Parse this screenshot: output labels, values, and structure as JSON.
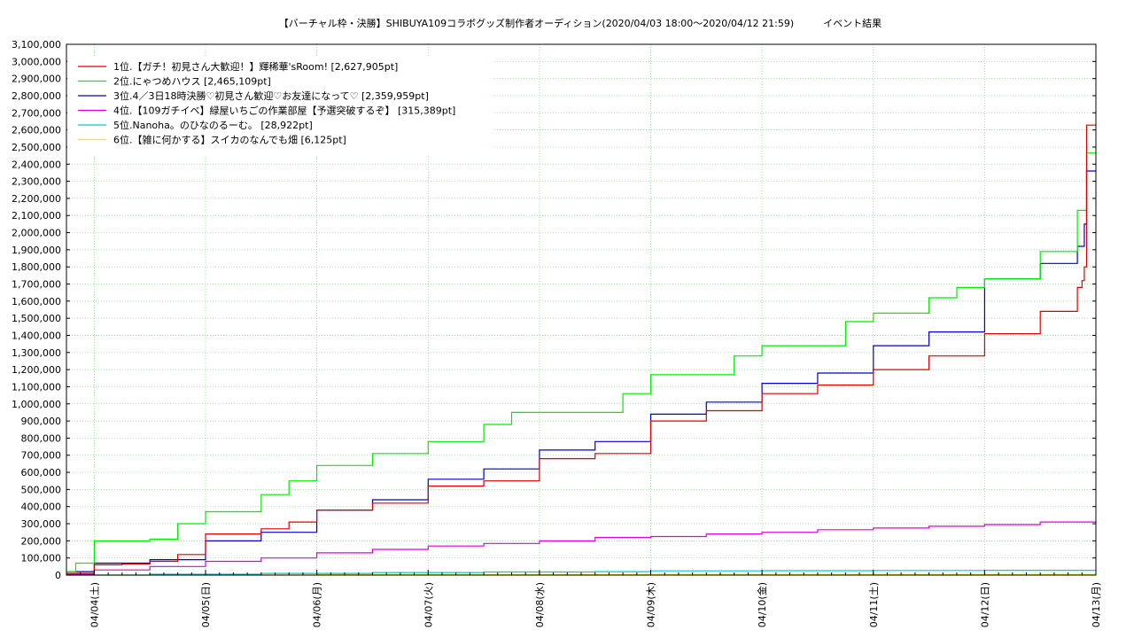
{
  "chart_data": {
    "type": "line",
    "title": "【バーチャル枠・決勝】SHIBUYA109コラボグッズ制作者オーディション(2020/04/03 18:00〜2020/04/12 21:59)　　　イベント結果",
    "xlabel": "",
    "ylabel": "",
    "grid": true,
    "legend_position": "top-left",
    "x_start": "2020-04-03 18:00",
    "x_end": "2020-04-13 00:00",
    "x_tick_labels": [
      "04/04(土)",
      "04/05(日)",
      "04/06(月)",
      "04/07(火)",
      "04/08(水)",
      "04/09(木)",
      "04/10(金)",
      "04/11(土)",
      "04/12(日)",
      "04/13(月)"
    ],
    "x_tick_dates": [
      "2020-04-04",
      "2020-04-05",
      "2020-04-06",
      "2020-04-07",
      "2020-04-08",
      "2020-04-09",
      "2020-04-10",
      "2020-04-11",
      "2020-04-12",
      "2020-04-13"
    ],
    "ylim": [
      0,
      3100000
    ],
    "y_tick_step": 100000,
    "y_tick_labels": [
      "0",
      "100,000",
      "200,000",
      "300,000",
      "400,000",
      "500,000",
      "600,000",
      "700,000",
      "800,000",
      "900,000",
      "1,000,000",
      "1,100,000",
      "1,200,000",
      "1,300,000",
      "1,400,000",
      "1,500,000",
      "1,600,000",
      "1,700,000",
      "1,800,000",
      "1,900,000",
      "2,000,000",
      "2,100,000",
      "2,200,000",
      "2,300,000",
      "2,400,000",
      "2,500,000",
      "2,600,000",
      "2,700,000",
      "2,800,000",
      "2,900,000",
      "3,000,000",
      "3,100,000"
    ],
    "series": [
      {
        "name": "1位.【ガチ！初見さん大歓迎！】輝稀華'sRoom! [2,627,905pt]",
        "color": "#dd0000",
        "x": [
          "2020-04-03 18:00",
          "2020-04-04 00:00",
          "2020-04-04 06:00",
          "2020-04-04 12:00",
          "2020-04-04 18:00",
          "2020-04-05 00:00",
          "2020-04-05 06:00",
          "2020-04-05 12:00",
          "2020-04-05 18:00",
          "2020-04-06 00:00",
          "2020-04-06 12:00",
          "2020-04-07 00:00",
          "2020-04-07 12:00",
          "2020-04-08 00:00",
          "2020-04-08 12:00",
          "2020-04-09 00:00",
          "2020-04-09 12:00",
          "2020-04-10 00:00",
          "2020-04-10 12:00",
          "2020-04-11 00:00",
          "2020-04-11 12:00",
          "2020-04-12 00:00",
          "2020-04-12 12:00",
          "2020-04-12 20:00",
          "2020-04-12 21:00",
          "2020-04-12 21:30",
          "2020-04-12 22:00",
          "2020-04-13 00:00"
        ],
        "values": [
          10000,
          60000,
          65000,
          80000,
          120000,
          240000,
          240000,
          270000,
          310000,
          380000,
          420000,
          520000,
          550000,
          680000,
          710000,
          900000,
          960000,
          1060000,
          1110000,
          1200000,
          1280000,
          1410000,
          1540000,
          1680000,
          1720000,
          1800000,
          2627905,
          2627905
        ]
      },
      {
        "name": "2位.にゃつめハウス [2,465,109pt]",
        "color": "#00ee00",
        "x": [
          "2020-04-03 18:00",
          "2020-04-03 20:00",
          "2020-04-04 00:00",
          "2020-04-04 12:00",
          "2020-04-04 18:00",
          "2020-04-05 00:00",
          "2020-04-05 12:00",
          "2020-04-05 18:00",
          "2020-04-06 00:00",
          "2020-04-06 12:00",
          "2020-04-06 18:00",
          "2020-04-07 00:00",
          "2020-04-07 12:00",
          "2020-04-07 18:00",
          "2020-04-08 00:00",
          "2020-04-08 18:00",
          "2020-04-09 00:00",
          "2020-04-09 18:00",
          "2020-04-10 00:00",
          "2020-04-10 18:00",
          "2020-04-11 00:00",
          "2020-04-11 12:00",
          "2020-04-11 18:00",
          "2020-04-12 00:00",
          "2020-04-12 12:00",
          "2020-04-12 20:00",
          "2020-04-12 22:00",
          "2020-04-13 00:00"
        ],
        "values": [
          20000,
          70000,
          200000,
          210000,
          300000,
          370000,
          470000,
          550000,
          640000,
          710000,
          710000,
          780000,
          880000,
          950000,
          950000,
          1060000,
          1170000,
          1280000,
          1340000,
          1480000,
          1530000,
          1620000,
          1680000,
          1730000,
          1890000,
          2130000,
          2465109,
          2465109
        ]
      },
      {
        "name": "3位.4／3日18時決勝♡初見さん歓迎♡お友達になって♡ [2,359,959pt]",
        "color": "#0000cc",
        "x": [
          "2020-04-03 18:00",
          "2020-04-04 00:00",
          "2020-04-04 12:00",
          "2020-04-05 00:00",
          "2020-04-05 12:00",
          "2020-04-06 00:00",
          "2020-04-06 12:00",
          "2020-04-07 00:00",
          "2020-04-07 12:00",
          "2020-04-08 00:00",
          "2020-04-08 12:00",
          "2020-04-09 00:00",
          "2020-04-09 12:00",
          "2020-04-10 00:00",
          "2020-04-10 12:00",
          "2020-04-11 00:00",
          "2020-04-11 12:00",
          "2020-04-12 00:00",
          "2020-04-12 12:00",
          "2020-04-12 20:00",
          "2020-04-12 21:30",
          "2020-04-12 22:00",
          "2020-04-13 00:00"
        ],
        "values": [
          20000,
          70000,
          90000,
          200000,
          250000,
          380000,
          440000,
          560000,
          620000,
          730000,
          780000,
          940000,
          1010000,
          1120000,
          1180000,
          1340000,
          1420000,
          1730000,
          1820000,
          1920000,
          2050000,
          2359959,
          2359959
        ]
      },
      {
        "name": "4位.【109ガチイベ】緑屋いちごの作業部屋【予選突破するぞ】 [315,389pt]",
        "color": "#dd00dd",
        "x": [
          "2020-04-03 18:00",
          "2020-04-04 00:00",
          "2020-04-04 12:00",
          "2020-04-05 00:00",
          "2020-04-05 12:00",
          "2020-04-06 00:00",
          "2020-04-06 12:00",
          "2020-04-07 00:00",
          "2020-04-07 12:00",
          "2020-04-08 00:00",
          "2020-04-08 12:00",
          "2020-04-09 00:00",
          "2020-04-09 12:00",
          "2020-04-10 00:00",
          "2020-04-10 12:00",
          "2020-04-11 00:00",
          "2020-04-11 12:00",
          "2020-04-12 00:00",
          "2020-04-12 12:00",
          "2020-04-13 00:00"
        ],
        "values": [
          5000,
          30000,
          50000,
          80000,
          100000,
          130000,
          150000,
          170000,
          185000,
          200000,
          220000,
          225000,
          240000,
          250000,
          265000,
          275000,
          285000,
          295000,
          310000,
          315389
        ]
      },
      {
        "name": "5位.Nanoha。のひなのるーむ。 [28,922pt]",
        "color": "#00cccc",
        "x": [
          "2020-04-03 18:00",
          "2020-04-04 12:00",
          "2020-04-05 12:00",
          "2020-04-06 12:00",
          "2020-04-07 12:00",
          "2020-04-08 12:00",
          "2020-04-09 00:00",
          "2020-04-10 00:00",
          "2020-04-11 00:00",
          "2020-04-12 00:00",
          "2020-04-13 00:00"
        ],
        "values": [
          0,
          5000,
          10000,
          15000,
          18000,
          20000,
          25000,
          26000,
          27000,
          28000,
          28922
        ]
      },
      {
        "name": "6位.【雑に何かする】スイカのなんでも畑 [6,125pt]",
        "color": "#eeee00",
        "x": [
          "2020-04-03 18:00",
          "2020-04-06 00:00",
          "2020-04-09 00:00",
          "2020-04-13 00:00"
        ],
        "values": [
          0,
          2000,
          4000,
          6125
        ]
      }
    ]
  }
}
